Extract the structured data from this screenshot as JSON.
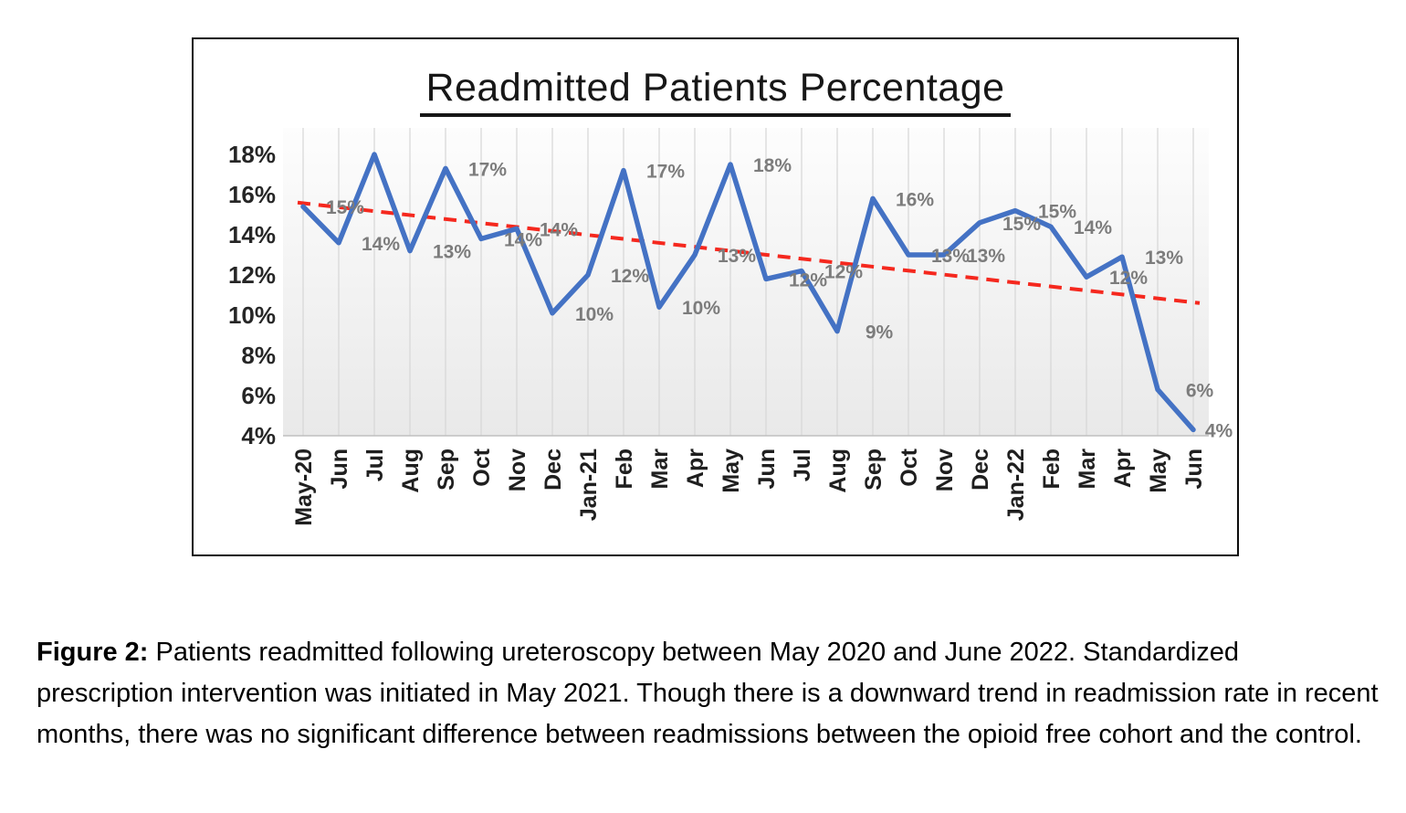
{
  "figure": {
    "caption_prefix": "Figure 2:",
    "caption_text": " Patients readmitted following ureteroscopy between May 2020 and June 2022. Standardized prescription intervention was initiated in May 2021. Though there is a downward trend in readmission rate in recent months, there was no significant difference between readmissions between the opioid free cohort and the control."
  },
  "chart_data": {
    "type": "line",
    "title": "Readmitted Patients Percentage",
    "categories": [
      "May-20",
      "Jun",
      "Jul",
      "Aug",
      "Sep",
      "Oct",
      "Nov",
      "Dec",
      "Jan-21",
      "Feb",
      "Mar",
      "Apr",
      "May",
      "Jun",
      "Jul",
      "Aug",
      "Sep",
      "Oct",
      "Nov",
      "Dec",
      "Jan-22",
      "Feb",
      "Mar",
      "Apr",
      "May",
      "Jun"
    ],
    "series": [
      {
        "name": "Readmitted patients percentage",
        "values": [
          15,
          14,
          18,
          13,
          17,
          14,
          14,
          10,
          12,
          17,
          10,
          13,
          18,
          12,
          12,
          9,
          16,
          13,
          13,
          15,
          15,
          14,
          12,
          13,
          6,
          4
        ],
        "plotted_values": [
          15.4,
          13.6,
          18.0,
          13.2,
          17.3,
          13.8,
          14.3,
          10.1,
          12.0,
          17.2,
          10.4,
          13.0,
          17.5,
          11.8,
          12.2,
          9.2,
          15.8,
          13.0,
          13.0,
          14.6,
          15.2,
          14.4,
          11.9,
          12.9,
          6.3,
          4.3
        ],
        "data_labels": [
          "15%",
          "14%",
          "",
          "13%",
          "17%",
          "14%",
          "14%",
          "10%",
          "12%",
          "17%",
          "10%",
          "13%",
          "18%",
          "12%",
          "12%",
          "9%",
          "16%",
          "13%",
          "13%",
          "15%",
          "15%",
          "14%",
          "12%",
          "13%",
          "6%",
          "4%"
        ],
        "color": "#4472C4"
      }
    ],
    "trendline": {
      "type": "linear",
      "start_value": 15.6,
      "end_value": 10.6,
      "color": "#f5281e",
      "style": "dashed"
    },
    "yticks": [
      "18%",
      "16%",
      "14%",
      "12%",
      "10%",
      "8%",
      "6%",
      "4%"
    ],
    "ylim": [
      4,
      18
    ],
    "xlabel": "",
    "ylabel": "",
    "grid": "vertical",
    "legend": "none",
    "label_color": "#7c7c7c",
    "gridline_color": "#d6d6d6",
    "axis_line_color": "#bfbfbf"
  }
}
